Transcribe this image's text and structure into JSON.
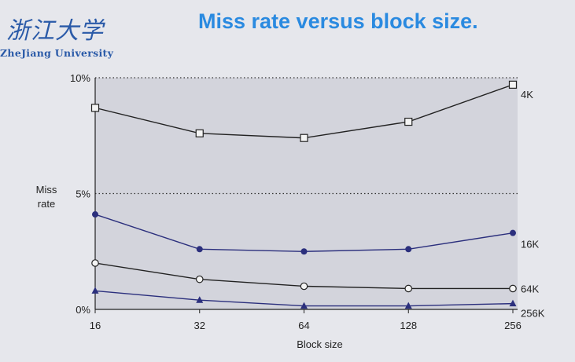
{
  "slide": {
    "logo_script": "浙江大学",
    "logo_text": "ZheJiang University",
    "title": "Miss rate versus block size."
  },
  "chart_data": {
    "type": "line",
    "title": "",
    "xlabel": "Block size",
    "ylabel": "Miss\nrate",
    "x": [
      16,
      32,
      64,
      128,
      256
    ],
    "x_scale": "log2",
    "ylim": [
      0,
      10
    ],
    "y_ticks": [
      {
        "value": 0,
        "label": "0%"
      },
      {
        "value": 5,
        "label": "5%"
      },
      {
        "value": 10,
        "label": "10%"
      }
    ],
    "grid": "dotted horizontal at 5% and 10%",
    "series": [
      {
        "name": "4K",
        "values": [
          8.7,
          7.6,
          7.4,
          8.1,
          9.7
        ],
        "marker": "square-open",
        "color": "#222222"
      },
      {
        "name": "16K",
        "values": [
          4.1,
          2.6,
          2.5,
          2.6,
          3.3
        ],
        "marker": "circle-filled",
        "color": "#2b2f7d"
      },
      {
        "name": "64K",
        "values": [
          2.0,
          1.3,
          1.0,
          0.9,
          0.9
        ],
        "marker": "circle-open",
        "color": "#222222"
      },
      {
        "name": "256K",
        "values": [
          0.8,
          0.4,
          0.15,
          0.15,
          0.25
        ],
        "marker": "triangle-filled",
        "color": "#2b2f7d"
      }
    ]
  }
}
